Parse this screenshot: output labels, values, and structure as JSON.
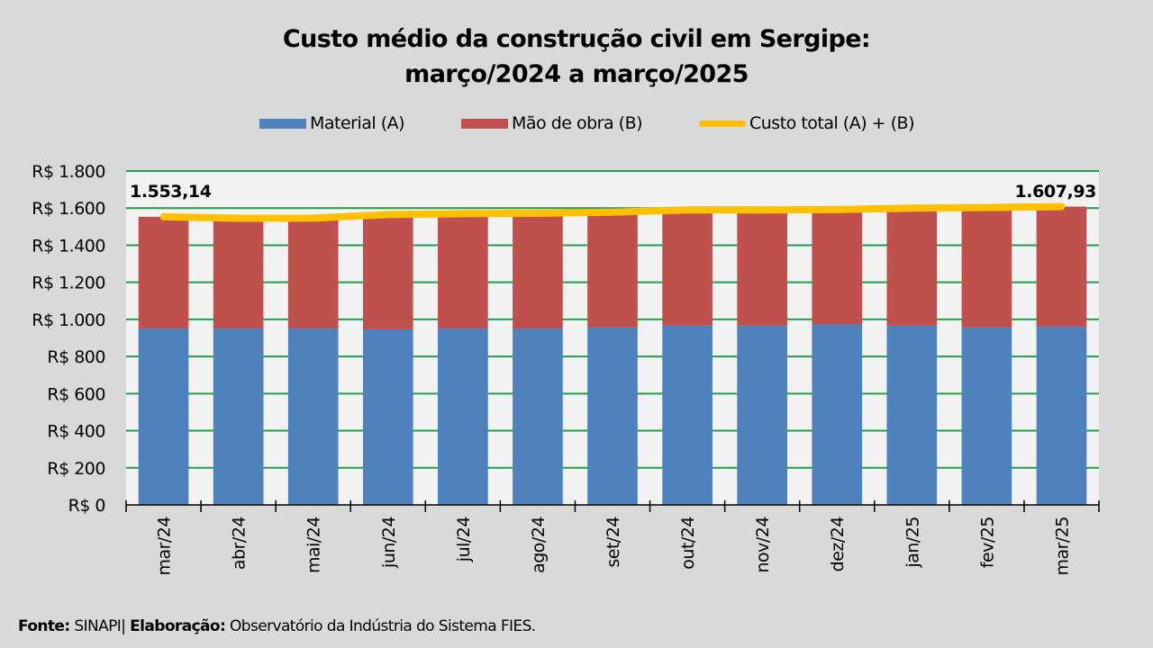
{
  "title_line1": "Custo médio da construção civil em Sergipe:",
  "title_line2": "março/2024 a março/2025",
  "legend": [
    {
      "label": "Material (A)",
      "color": "#4f81bd",
      "kind": "bar"
    },
    {
      "label": "Mão de obra (B)",
      "color": "#c0504d",
      "kind": "bar"
    },
    {
      "label": "Custo total (A) + (B)",
      "color": "#ffc000",
      "kind": "line"
    }
  ],
  "footer": {
    "source_label": "Fonte:",
    "source_value": "SINAPI",
    "separator": "|",
    "credit_label": "Elaboração:",
    "credit_value": "Observatório da Indústria do Sistema FIES."
  },
  "chart_data": {
    "type": "bar",
    "stacked": true,
    "title": "Custo médio da construção civil em Sergipe: março/2024 a março/2025",
    "xlabel": "",
    "ylabel": "",
    "ylim": [
      0,
      1800
    ],
    "ytick_step": 200,
    "ytick_labels": [
      "R$ 0",
      "R$ 200",
      "R$ 400",
      "R$ 600",
      "R$ 800",
      "R$ 1.000",
      "R$ 1.200",
      "R$ 1.400",
      "R$ 1.600",
      "R$ 1.800"
    ],
    "grid": true,
    "legend_position": "top",
    "categories": [
      "mar/24",
      "abr/24",
      "mai/24",
      "jun/24",
      "jul/24",
      "ago/24",
      "set/24",
      "out/24",
      "nov/24",
      "dez/24",
      "jan/25",
      "fev/25",
      "mar/25"
    ],
    "series": [
      {
        "name": "Material (A)",
        "type": "bar",
        "color": "#4f81bd",
        "values": [
          951,
          951,
          951,
          946,
          951,
          951,
          956,
          966,
          966,
          973,
          966,
          956,
          961
        ]
      },
      {
        "name": "Mão de obra (B)",
        "type": "bar",
        "color": "#c0504d",
        "values": [
          602.14,
          594,
          595,
          619,
          619,
          621,
          622,
          624,
          624,
          619,
          634,
          647,
          646.93
        ]
      },
      {
        "name": "Custo total (A) + (B)",
        "type": "line",
        "color": "#ffc000",
        "values": [
          1553.14,
          1545,
          1546,
          1565,
          1570,
          1572,
          1578,
          1590,
          1590,
          1592,
          1600,
          1603,
          1607.93
        ]
      }
    ],
    "annotations": [
      {
        "category": "mar/24",
        "text": "1.553,14"
      },
      {
        "category": "mar/25",
        "text": "1.607,93"
      }
    ]
  }
}
